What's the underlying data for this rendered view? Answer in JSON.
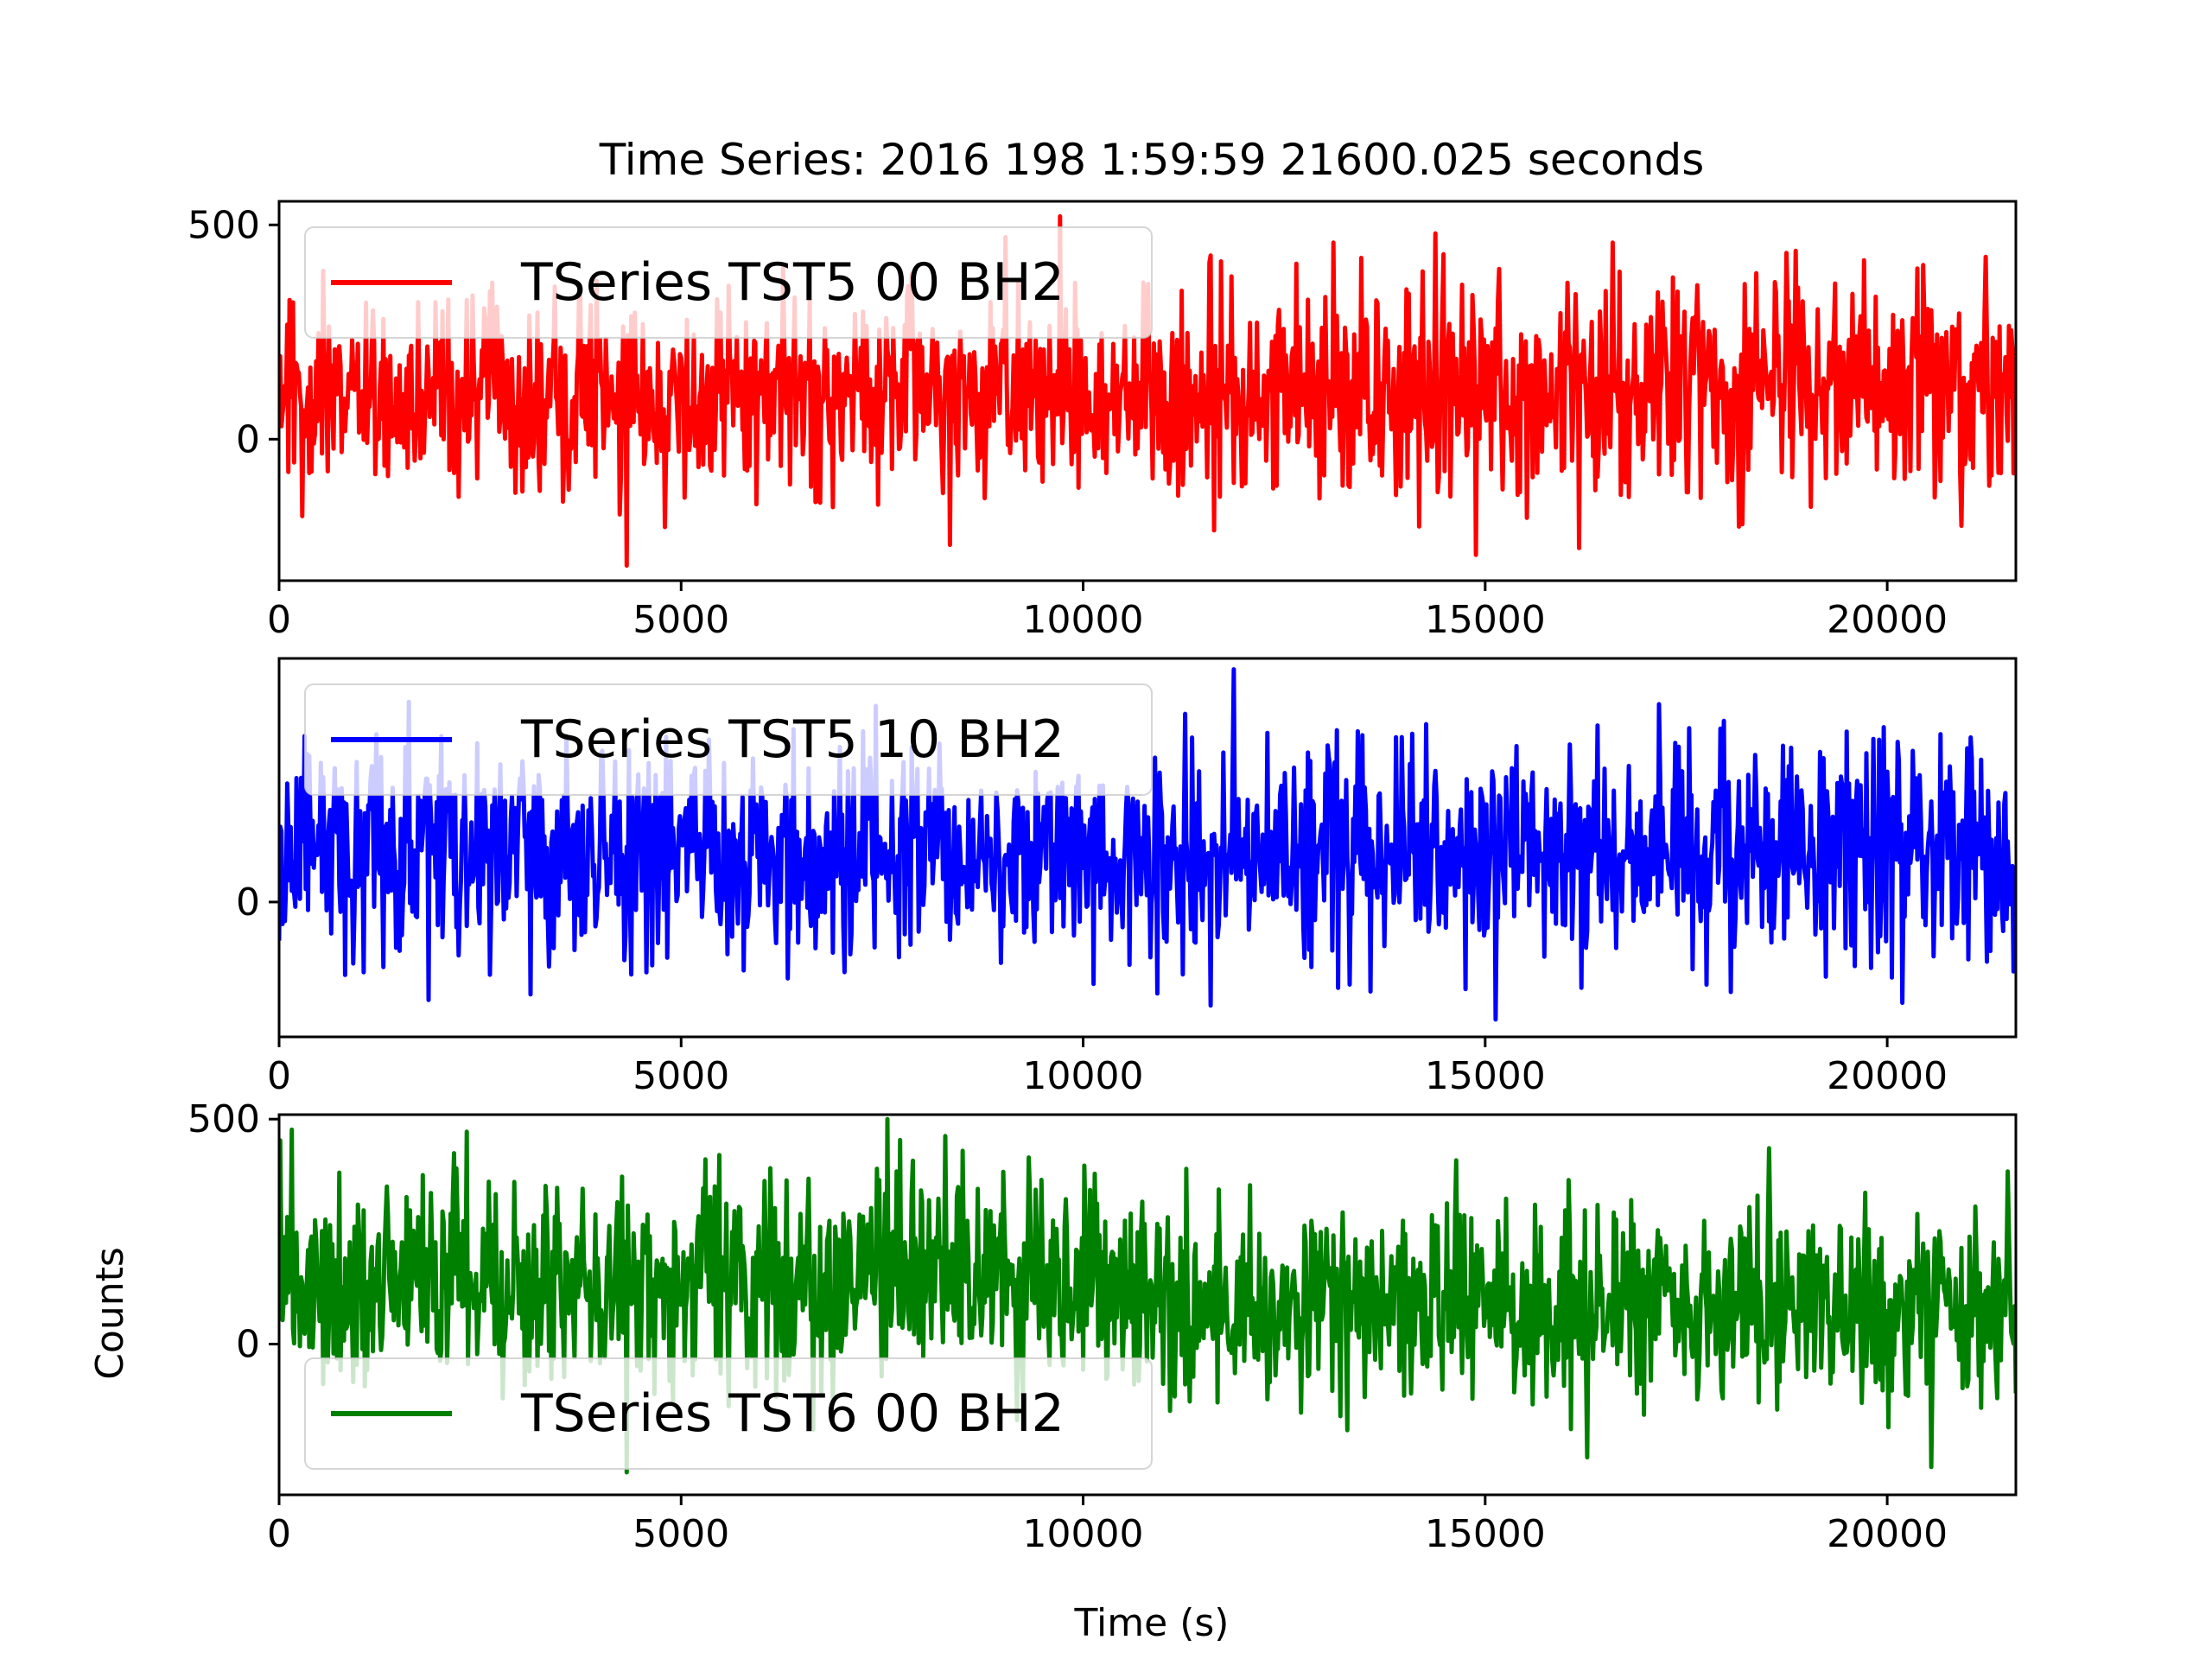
{
  "chart_data": {
    "type": "line",
    "title": "Time Series: 2016 198 1:59:59 21600.025 seconds",
    "xlabel": "Time (s)",
    "ylabel": "Counts",
    "xlim": [
      0,
      21600.025
    ],
    "xticks": [
      0,
      5000,
      10000,
      15000,
      20000
    ],
    "grid": false,
    "panels": [
      {
        "series": [
          {
            "name": "TSeries TST5 00 BH2",
            "color": "#ff0000",
            "summary": {
              "mean": 110,
              "min": -295,
              "max": 520
            },
            "segments": [
              {
                "x": [
                  0,
                  10600
                ],
                "mean": 100,
                "spread": 110
              },
              {
                "x": [
                  10600,
                  21600
                ],
                "mean": 120,
                "spread": 130
              }
            ]
          }
        ],
        "ylim": [
          -330,
          555
        ],
        "yticks": [
          0,
          500
        ],
        "legend": "upper left"
      },
      {
        "series": [
          {
            "name": "TSeries TST5 10 BH2",
            "color": "#0000ff",
            "summary": {
              "mean": 115,
              "min": -270,
              "max": 535
            },
            "segments": [
              {
                "x": [
                  0,
                  21600
                ],
                "mean": 115,
                "spread": 125
              }
            ]
          }
        ],
        "ylim": [
          -310,
          560
        ],
        "yticks": [
          0
        ],
        "legend": "upper left"
      },
      {
        "series": [
          {
            "name": "TSeries TST6 00 BH2",
            "color": "#008000",
            "summary": {
              "mean": 115,
              "min": -285,
              "max": 500
            },
            "segments": [
              {
                "x": [
                  0,
                  10600
                ],
                "mean": 140,
                "spread": 110
              },
              {
                "x": [
                  10600,
                  21600
                ],
                "mean": 85,
                "spread": 115
              }
            ]
          }
        ],
        "ylim": [
          -335,
          510
        ],
        "yticks": [
          0,
          500
        ],
        "legend": "lower left"
      }
    ]
  }
}
